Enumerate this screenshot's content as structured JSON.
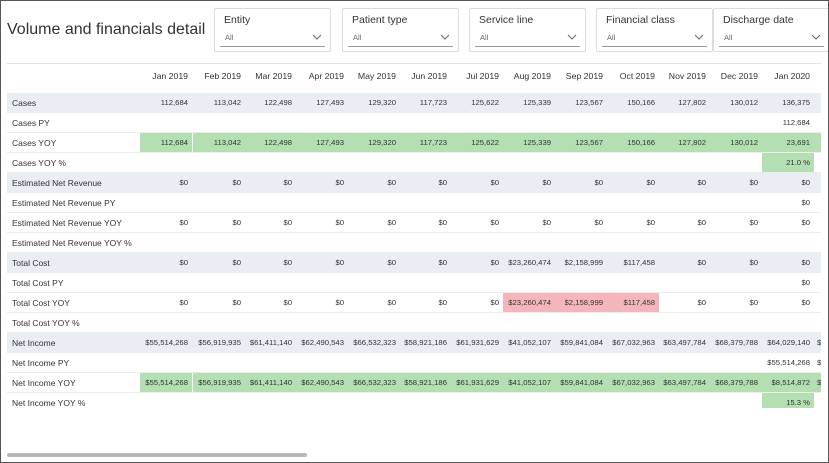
{
  "title": "Volume and financials detail",
  "filters": [
    {
      "label": "Entity",
      "value": "All"
    },
    {
      "label": "Patient type",
      "value": "All"
    },
    {
      "label": "Service line",
      "value": "All"
    },
    {
      "label": "Financial class",
      "value": "All"
    },
    {
      "label": "Discharge date",
      "value": "All"
    }
  ],
  "columns": [
    "Jan 2019",
    "Feb 2019",
    "Mar 2019",
    "Apr 2019",
    "May 2019",
    "Jun 2019",
    "Jul 2019",
    "Aug 2019",
    "Sep 2019",
    "Oct 2019",
    "Nov 2019",
    "Dec 2019",
    "Jan 2020",
    "F"
  ],
  "colors": {
    "positive": "#b3dfb3",
    "negative": "#f5b6bb",
    "band": "#e9edf4"
  },
  "rows": [
    {
      "label": "Cases",
      "band": true,
      "cells": [
        {
          "v": "112,684"
        },
        {
          "v": "113,042"
        },
        {
          "v": "122,498"
        },
        {
          "v": "127,493"
        },
        {
          "v": "129,320"
        },
        {
          "v": "117,723"
        },
        {
          "v": "125,622"
        },
        {
          "v": "125,339"
        },
        {
          "v": "123,567"
        },
        {
          "v": "150,166"
        },
        {
          "v": "127,802"
        },
        {
          "v": "130,012"
        },
        {
          "v": "136,375"
        },
        {
          "v": ""
        }
      ]
    },
    {
      "label": "Cases PY",
      "band": false,
      "cells": [
        {
          "v": ""
        },
        {
          "v": ""
        },
        {
          "v": ""
        },
        {
          "v": ""
        },
        {
          "v": ""
        },
        {
          "v": ""
        },
        {
          "v": ""
        },
        {
          "v": ""
        },
        {
          "v": ""
        },
        {
          "v": ""
        },
        {
          "v": ""
        },
        {
          "v": ""
        },
        {
          "v": "112,684"
        },
        {
          "v": ""
        }
      ]
    },
    {
      "label": "Cases YOY",
      "band": false,
      "cells": [
        {
          "v": "112,684",
          "c": "g"
        },
        {
          "v": "113,042",
          "c": "g"
        },
        {
          "v": "122,498",
          "c": "g"
        },
        {
          "v": "127,493",
          "c": "g"
        },
        {
          "v": "129,320",
          "c": "g"
        },
        {
          "v": "117,723",
          "c": "g"
        },
        {
          "v": "125,622",
          "c": "g"
        },
        {
          "v": "125,339",
          "c": "g"
        },
        {
          "v": "123,567",
          "c": "g"
        },
        {
          "v": "150,166",
          "c": "g"
        },
        {
          "v": "127,802",
          "c": "g"
        },
        {
          "v": "130,012",
          "c": "g"
        },
        {
          "v": "23,691",
          "c": "g"
        },
        {
          "v": "",
          "c": "g"
        }
      ]
    },
    {
      "label": "Cases YOY %",
      "band": false,
      "cells": [
        {
          "v": ""
        },
        {
          "v": ""
        },
        {
          "v": ""
        },
        {
          "v": ""
        },
        {
          "v": ""
        },
        {
          "v": ""
        },
        {
          "v": ""
        },
        {
          "v": ""
        },
        {
          "v": ""
        },
        {
          "v": ""
        },
        {
          "v": ""
        },
        {
          "v": ""
        },
        {
          "v": "21.0 %",
          "c": "g"
        },
        {
          "v": ""
        }
      ]
    },
    {
      "label": "Estimated Net Revenue",
      "band": true,
      "cells": [
        {
          "v": "$0"
        },
        {
          "v": "$0"
        },
        {
          "v": "$0"
        },
        {
          "v": "$0"
        },
        {
          "v": "$0"
        },
        {
          "v": "$0"
        },
        {
          "v": "$0"
        },
        {
          "v": "$0"
        },
        {
          "v": "$0"
        },
        {
          "v": "$0"
        },
        {
          "v": "$0"
        },
        {
          "v": "$0"
        },
        {
          "v": "$0"
        },
        {
          "v": ""
        }
      ]
    },
    {
      "label": "Estimated Net Revenue PY",
      "band": false,
      "cells": [
        {
          "v": ""
        },
        {
          "v": ""
        },
        {
          "v": ""
        },
        {
          "v": ""
        },
        {
          "v": ""
        },
        {
          "v": ""
        },
        {
          "v": ""
        },
        {
          "v": ""
        },
        {
          "v": ""
        },
        {
          "v": ""
        },
        {
          "v": ""
        },
        {
          "v": ""
        },
        {
          "v": "$0"
        },
        {
          "v": ""
        }
      ]
    },
    {
      "label": "Estimated Net Revenue YOY",
      "band": false,
      "cells": [
        {
          "v": "$0"
        },
        {
          "v": "$0"
        },
        {
          "v": "$0"
        },
        {
          "v": "$0"
        },
        {
          "v": "$0"
        },
        {
          "v": "$0"
        },
        {
          "v": "$0"
        },
        {
          "v": "$0"
        },
        {
          "v": "$0"
        },
        {
          "v": "$0"
        },
        {
          "v": "$0"
        },
        {
          "v": "$0"
        },
        {
          "v": "$0"
        },
        {
          "v": ""
        }
      ]
    },
    {
      "label": "Estimated Net Revenue YOY %",
      "band": false,
      "cells": [
        {
          "v": ""
        },
        {
          "v": ""
        },
        {
          "v": ""
        },
        {
          "v": ""
        },
        {
          "v": ""
        },
        {
          "v": ""
        },
        {
          "v": ""
        },
        {
          "v": ""
        },
        {
          "v": ""
        },
        {
          "v": ""
        },
        {
          "v": ""
        },
        {
          "v": ""
        },
        {
          "v": ""
        },
        {
          "v": ""
        }
      ]
    },
    {
      "label": "Total Cost",
      "band": true,
      "cells": [
        {
          "v": "$0"
        },
        {
          "v": "$0"
        },
        {
          "v": "$0"
        },
        {
          "v": "$0"
        },
        {
          "v": "$0"
        },
        {
          "v": "$0"
        },
        {
          "v": "$0"
        },
        {
          "v": "$23,260,474"
        },
        {
          "v": "$2,158,999"
        },
        {
          "v": "$117,458"
        },
        {
          "v": "$0"
        },
        {
          "v": "$0"
        },
        {
          "v": "$0"
        },
        {
          "v": ""
        }
      ]
    },
    {
      "label": "Total Cost PY",
      "band": false,
      "cells": [
        {
          "v": ""
        },
        {
          "v": ""
        },
        {
          "v": ""
        },
        {
          "v": ""
        },
        {
          "v": ""
        },
        {
          "v": ""
        },
        {
          "v": ""
        },
        {
          "v": ""
        },
        {
          "v": ""
        },
        {
          "v": ""
        },
        {
          "v": ""
        },
        {
          "v": ""
        },
        {
          "v": "$0"
        },
        {
          "v": ""
        }
      ]
    },
    {
      "label": "Total Cost YOY",
      "band": false,
      "cells": [
        {
          "v": "$0"
        },
        {
          "v": "$0"
        },
        {
          "v": "$0"
        },
        {
          "v": "$0"
        },
        {
          "v": "$0"
        },
        {
          "v": "$0"
        },
        {
          "v": "$0"
        },
        {
          "v": "$23,260,474",
          "c": "r"
        },
        {
          "v": "$2,158,999",
          "c": "r"
        },
        {
          "v": "$117,458",
          "c": "r"
        },
        {
          "v": "$0"
        },
        {
          "v": "$0"
        },
        {
          "v": "$0"
        },
        {
          "v": ""
        }
      ]
    },
    {
      "label": "Total Cost YOY %",
      "band": false,
      "cells": [
        {
          "v": ""
        },
        {
          "v": ""
        },
        {
          "v": ""
        },
        {
          "v": ""
        },
        {
          "v": ""
        },
        {
          "v": ""
        },
        {
          "v": ""
        },
        {
          "v": ""
        },
        {
          "v": ""
        },
        {
          "v": ""
        },
        {
          "v": ""
        },
        {
          "v": ""
        },
        {
          "v": ""
        },
        {
          "v": ""
        }
      ]
    },
    {
      "label": "Net Income",
      "band": true,
      "cells": [
        {
          "v": "$55,514,268"
        },
        {
          "v": "$56,919,935"
        },
        {
          "v": "$61,411,140"
        },
        {
          "v": "$62,490,543"
        },
        {
          "v": "$66,532,323"
        },
        {
          "v": "$58,921,186"
        },
        {
          "v": "$61,931,629"
        },
        {
          "v": "$41,052,107"
        },
        {
          "v": "$59,841,084"
        },
        {
          "v": "$67,032,963"
        },
        {
          "v": "$63,497,784"
        },
        {
          "v": "$68,379,788"
        },
        {
          "v": "$64,029,140"
        },
        {
          "v": "$"
        }
      ]
    },
    {
      "label": "Net Income PY",
      "band": false,
      "cells": [
        {
          "v": ""
        },
        {
          "v": ""
        },
        {
          "v": ""
        },
        {
          "v": ""
        },
        {
          "v": ""
        },
        {
          "v": ""
        },
        {
          "v": ""
        },
        {
          "v": ""
        },
        {
          "v": ""
        },
        {
          "v": ""
        },
        {
          "v": ""
        },
        {
          "v": ""
        },
        {
          "v": "$55,514,268"
        },
        {
          "v": "$5"
        }
      ]
    },
    {
      "label": "Net Income YOY",
      "band": false,
      "cells": [
        {
          "v": "$55,514,268",
          "c": "g"
        },
        {
          "v": "$56,919,935",
          "c": "g"
        },
        {
          "v": "$61,411,140",
          "c": "g"
        },
        {
          "v": "$62,490,543",
          "c": "g"
        },
        {
          "v": "$66,532,323",
          "c": "g"
        },
        {
          "v": "$58,921,186",
          "c": "g"
        },
        {
          "v": "$61,931,629",
          "c": "g"
        },
        {
          "v": "$41,052,107",
          "c": "g"
        },
        {
          "v": "$59,841,084",
          "c": "g"
        },
        {
          "v": "$67,032,963",
          "c": "g"
        },
        {
          "v": "$63,497,784",
          "c": "g"
        },
        {
          "v": "$68,379,788",
          "c": "g"
        },
        {
          "v": "$8,514,872",
          "c": "g"
        },
        {
          "v": "$",
          "c": "g"
        }
      ]
    },
    {
      "label": "Net Income YOY %",
      "band": false,
      "cells": [
        {
          "v": ""
        },
        {
          "v": ""
        },
        {
          "v": ""
        },
        {
          "v": ""
        },
        {
          "v": ""
        },
        {
          "v": ""
        },
        {
          "v": ""
        },
        {
          "v": ""
        },
        {
          "v": ""
        },
        {
          "v": ""
        },
        {
          "v": ""
        },
        {
          "v": ""
        },
        {
          "v": "15.3 %",
          "c": "g"
        },
        {
          "v": ""
        }
      ]
    }
  ]
}
